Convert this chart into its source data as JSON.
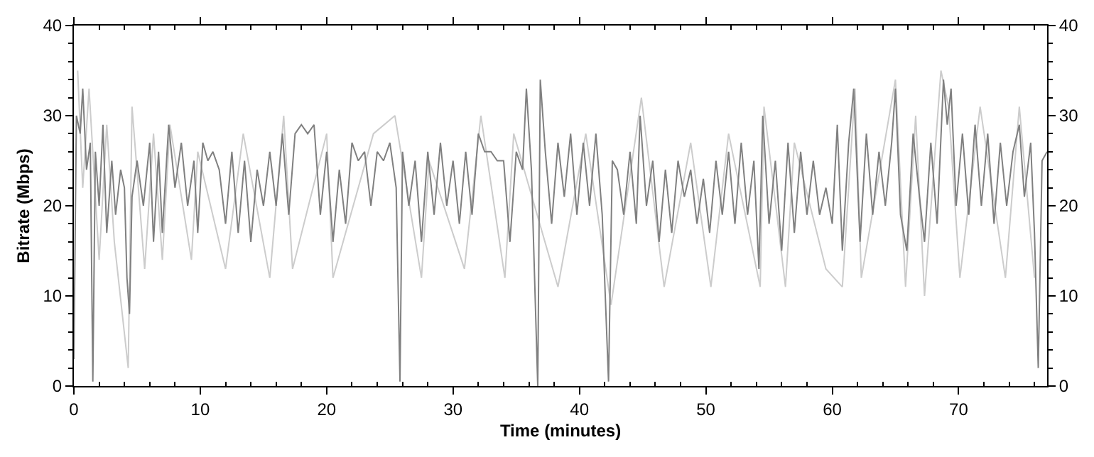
{
  "chart_data": {
    "type": "line",
    "xlabel": "Time (minutes)",
    "ylabel": "Bitrate (Mbps)",
    "xlim": [
      0,
      77
    ],
    "ylim": [
      0,
      40
    ],
    "y2lim": [
      0,
      40
    ],
    "xticks": [
      0,
      {
        "value": 2,
        "label": null
      },
      {
        "value": 4,
        "label": null
      },
      {
        "value": 6,
        "label": null
      },
      {
        "value": 8,
        "label": null
      },
      10,
      {
        "value": 12,
        "label": null
      },
      {
        "value": 14,
        "label": null
      },
      {
        "value": 16,
        "label": null
      },
      {
        "value": 18,
        "label": null
      },
      20,
      {
        "value": 22,
        "label": null
      },
      {
        "value": 24,
        "label": null
      },
      {
        "value": 26,
        "label": null
      },
      {
        "value": 28,
        "label": null
      },
      30,
      {
        "value": 32,
        "label": null
      },
      {
        "value": 34,
        "label": null
      },
      {
        "value": 36,
        "label": null
      },
      {
        "value": 38,
        "label": null
      },
      40,
      {
        "value": 42,
        "label": null
      },
      {
        "value": 44,
        "label": null
      },
      {
        "value": 46,
        "label": null
      },
      {
        "value": 48,
        "label": null
      },
      50,
      {
        "value": 52,
        "label": null
      },
      {
        "value": 54,
        "label": null
      },
      {
        "value": 56,
        "label": null
      },
      {
        "value": 58,
        "label": null
      },
      60,
      {
        "value": 62,
        "label": null
      },
      {
        "value": 64,
        "label": null
      },
      {
        "value": 66,
        "label": null
      },
      {
        "value": 68,
        "label": null
      },
      70,
      {
        "value": 72,
        "label": null
      },
      {
        "value": 74,
        "label": null
      },
      {
        "value": 76,
        "label": null
      }
    ],
    "yticks": [
      0,
      {
        "value": 2,
        "label": null
      },
      {
        "value": 4,
        "label": null
      },
      {
        "value": 6,
        "label": null
      },
      {
        "value": 8,
        "label": null
      },
      10,
      {
        "value": 12,
        "label": null
      },
      {
        "value": 14,
        "label": null
      },
      {
        "value": 16,
        "label": null
      },
      {
        "value": 18,
        "label": null
      },
      20,
      {
        "value": 22,
        "label": null
      },
      {
        "value": 24,
        "label": null
      },
      {
        "value": 26,
        "label": null
      },
      {
        "value": 28,
        "label": null
      },
      30,
      {
        "value": 32,
        "label": null
      },
      {
        "value": 34,
        "label": null
      },
      {
        "value": 36,
        "label": null
      },
      {
        "value": 38,
        "label": null
      },
      40
    ],
    "y2ticks": [
      0,
      {
        "value": 2,
        "label": null
      },
      {
        "value": 4,
        "label": null
      },
      {
        "value": 6,
        "label": null
      },
      {
        "value": 8,
        "label": null
      },
      10,
      {
        "value": 12,
        "label": null
      },
      {
        "value": 14,
        "label": null
      },
      {
        "value": 16,
        "label": null
      },
      {
        "value": 18,
        "label": null
      },
      20,
      {
        "value": 22,
        "label": null
      },
      {
        "value": 24,
        "label": null
      },
      {
        "value": 26,
        "label": null
      },
      {
        "value": 28,
        "label": null
      },
      30,
      {
        "value": 32,
        "label": null
      },
      {
        "value": 34,
        "label": null
      },
      {
        "value": 36,
        "label": null
      },
      {
        "value": 38,
        "label": null
      },
      40
    ],
    "marker": "none",
    "line_style": "solid",
    "series": [
      {
        "color": "#cccccc",
        "x": [
          0.3,
          0.7,
          1.2,
          2.0,
          2.6,
          3.2,
          4.3,
          4.6,
          5.6,
          6.3,
          7.0,
          7.6,
          9.3,
          9.8,
          12.0,
          13.4,
          15.5,
          16.6,
          17.3,
          20.0,
          20.5,
          23.7,
          25.4,
          27.5,
          28.1,
          30.9,
          32.2,
          34.1,
          34.8,
          38.3,
          40.5,
          42.5,
          44.9,
          46.7,
          48.8,
          50.4,
          51.8,
          54.3,
          54.6,
          56.3,
          57.0,
          59.5,
          60.8,
          61.8,
          62.3,
          65.0,
          65.8,
          66.6,
          67.3,
          68.6,
          69.2,
          70.1,
          71.7,
          73.7,
          74.8,
          76.0
        ],
        "values": [
          35,
          22,
          33,
          14,
          29,
          16,
          2,
          31,
          13,
          28,
          14,
          29,
          14,
          26,
          13,
          28,
          12,
          30,
          13,
          28,
          12,
          28,
          30,
          12,
          25,
          13,
          30,
          12,
          28,
          11,
          28,
          9,
          32,
          11,
          27,
          11,
          28,
          11,
          31,
          11,
          27,
          13,
          11,
          33,
          12,
          34,
          11,
          30,
          10,
          35,
          31,
          12,
          31,
          12,
          31,
          12
        ]
      },
      {
        "color": "#808080",
        "x": [
          0.0,
          0.2,
          0.5,
          0.7,
          1.0,
          1.3,
          1.5,
          1.7,
          2.0,
          2.3,
          2.6,
          3.0,
          3.3,
          3.7,
          4.0,
          4.2,
          4.4,
          4.6,
          5.0,
          5.5,
          6.0,
          6.3,
          6.7,
          7.0,
          7.5,
          8.0,
          8.5,
          9.0,
          9.5,
          9.8,
          10.2,
          10.6,
          11.0,
          11.5,
          12.0,
          12.5,
          13.0,
          13.5,
          14.0,
          14.5,
          15.0,
          15.5,
          16.0,
          16.5,
          17.0,
          17.5,
          18.0,
          18.5,
          19.0,
          19.5,
          20.0,
          20.5,
          21.0,
          21.5,
          22.0,
          22.5,
          23.0,
          23.5,
          24.0,
          24.5,
          25.0,
          25.5,
          25.8,
          26.0,
          26.5,
          27.0,
          27.5,
          28.0,
          28.5,
          29.0,
          29.5,
          30.0,
          30.5,
          31.0,
          31.5,
          32.0,
          32.5,
          33.0,
          33.5,
          34.0,
          34.5,
          35.0,
          35.5,
          35.8,
          36.2,
          36.7,
          36.9,
          37.3,
          37.8,
          38.3,
          38.8,
          39.3,
          39.8,
          40.3,
          40.8,
          41.3,
          41.8,
          42.3,
          42.6,
          43.0,
          43.5,
          44.0,
          44.5,
          44.8,
          45.3,
          45.8,
          46.3,
          46.8,
          47.3,
          47.8,
          48.3,
          48.8,
          49.3,
          49.8,
          50.3,
          50.8,
          51.3,
          51.8,
          52.3,
          52.8,
          53.3,
          53.8,
          54.2,
          54.5,
          55.0,
          55.5,
          56.0,
          56.5,
          57.0,
          57.5,
          58.0,
          58.5,
          59.0,
          59.5,
          60.0,
          60.4,
          60.8,
          61.3,
          61.7,
          62.2,
          62.7,
          63.2,
          63.7,
          64.2,
          64.7,
          65.0,
          65.4,
          65.9,
          66.4,
          66.9,
          67.3,
          67.8,
          68.3,
          68.8,
          69.1,
          69.4,
          69.8,
          70.3,
          70.8,
          71.3,
          71.8,
          72.3,
          72.8,
          73.3,
          73.8,
          74.3,
          74.8,
          75.2,
          75.7,
          76.0,
          76.3,
          76.6,
          77.0
        ],
        "values": [
          3,
          30,
          28,
          33,
          24,
          27,
          0.5,
          26,
          20,
          29,
          17,
          25,
          19,
          24,
          22,
          12,
          8,
          21,
          25,
          20,
          27,
          16,
          26,
          17,
          29,
          22,
          27,
          20,
          25,
          17,
          27,
          25,
          26,
          24,
          18,
          26,
          17,
          25,
          16,
          24,
          20,
          26,
          20,
          28,
          19,
          28,
          29,
          28,
          29,
          19,
          26,
          16,
          24,
          18,
          27,
          25,
          26,
          20,
          26,
          25,
          27,
          22,
          0.5,
          26,
          20,
          25,
          16,
          26,
          19,
          27,
          20,
          25,
          18,
          26,
          19,
          28,
          26,
          26,
          25,
          25,
          16,
          26,
          24,
          33,
          24,
          0,
          34,
          26,
          18,
          27,
          21,
          28,
          19,
          27,
          20,
          28,
          19,
          0.5,
          25,
          24,
          19,
          26,
          18,
          30,
          20,
          25,
          16,
          24,
          17,
          25,
          21,
          24,
          18,
          23,
          17,
          25,
          19,
          26,
          18,
          27,
          19,
          25,
          13,
          30,
          18,
          25,
          15,
          27,
          17,
          26,
          19,
          25,
          19,
          22,
          18,
          29,
          15,
          27,
          33,
          16,
          28,
          19,
          26,
          20,
          27,
          33,
          19,
          15,
          28,
          21,
          16,
          27,
          18,
          34,
          29,
          33,
          20,
          28,
          19,
          29,
          20,
          28,
          18,
          27,
          20,
          26,
          29,
          21,
          27,
          17,
          2,
          25,
          26
        ]
      }
    ]
  }
}
